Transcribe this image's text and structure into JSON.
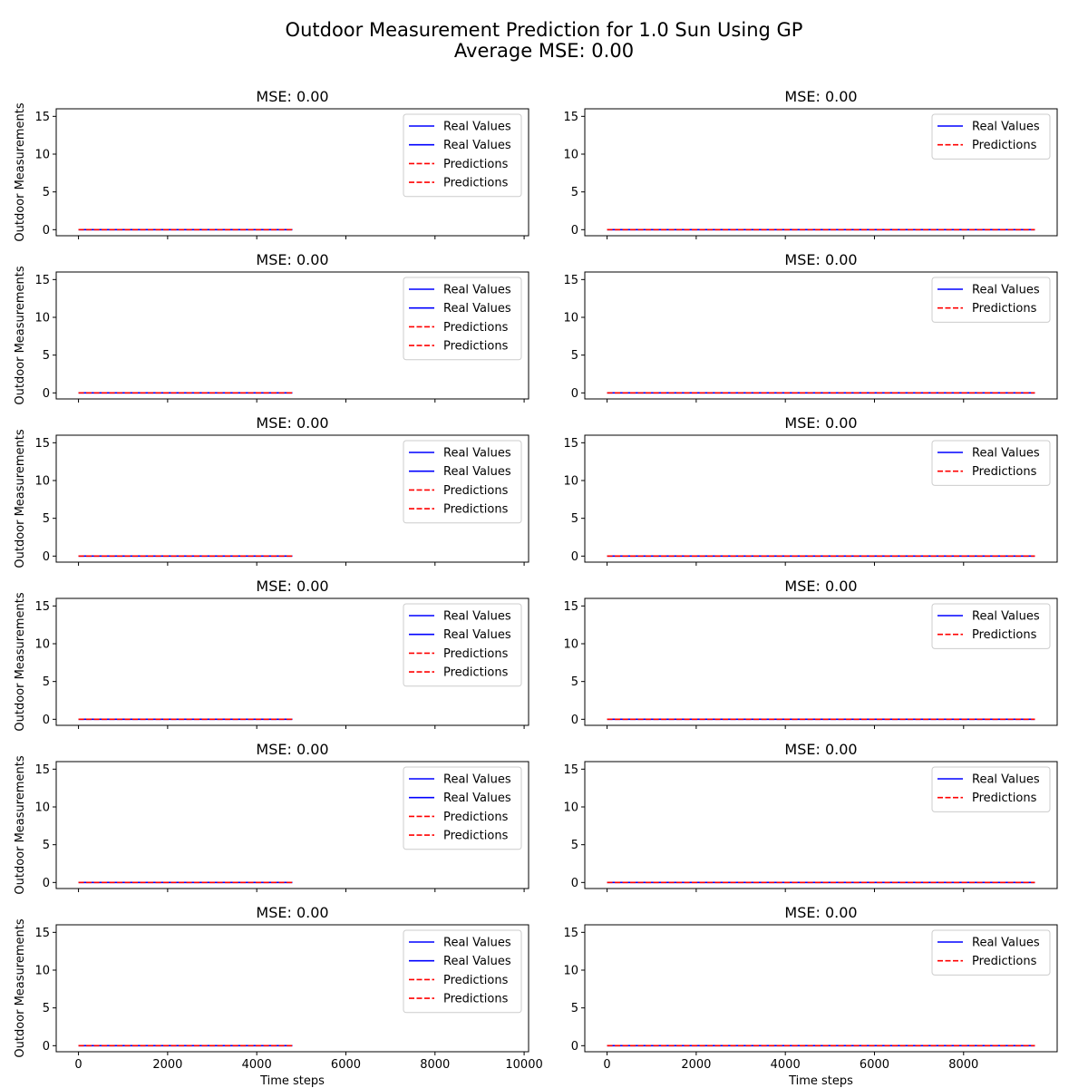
{
  "figure": {
    "title_line1": "Outdoor Measurement Prediction for 1.0 Sun Using GP",
    "title_line2": "Average MSE: 0.00"
  },
  "colors": {
    "real": "#0000ff",
    "prediction": "#ff0000",
    "axes": "#000000",
    "background": "#ffffff"
  },
  "chart_data": [
    {
      "type": "line",
      "title": "MSE: 0.00",
      "xlabel": "",
      "ylabel": "Outdoor Measurements",
      "xlim": [
        -500,
        10100
      ],
      "ylim": [
        -0.8,
        16
      ],
      "xticks": [
        0,
        2000,
        4000,
        6000,
        8000,
        10000
      ],
      "yticks": [
        0,
        5,
        10,
        15
      ],
      "x_ticklabels_visible": false,
      "legend_position": "top-right",
      "legend": [
        "Real Values",
        "Real Values",
        "Predictions",
        "Predictions"
      ],
      "series": [
        {
          "name": "Real Values",
          "style": "solid",
          "color": "#0000ff",
          "x": [
            0,
            4800
          ],
          "y": [
            0,
            0
          ]
        },
        {
          "name": "Predictions",
          "style": "dashed",
          "color": "#ff0000",
          "x": [
            0,
            4800
          ],
          "y": [
            0,
            0
          ]
        }
      ]
    },
    {
      "type": "line",
      "title": "MSE: 0.00",
      "xlabel": "",
      "ylabel": "",
      "xlim": [
        -500,
        10100
      ],
      "ylim": [
        -0.8,
        16
      ],
      "xticks": [
        0,
        2000,
        4000,
        6000,
        8000
      ],
      "yticks": [
        0,
        5,
        10,
        15
      ],
      "x_ticklabels_visible": false,
      "legend_position": "top-right",
      "legend": [
        "Real Values",
        "Predictions"
      ],
      "series": [
        {
          "name": "Real Values",
          "style": "solid",
          "color": "#0000ff",
          "x": [
            0,
            9600
          ],
          "y": [
            0,
            0
          ]
        },
        {
          "name": "Predictions",
          "style": "dashed",
          "color": "#ff0000",
          "x": [
            0,
            9600
          ],
          "y": [
            0,
            0
          ]
        }
      ]
    },
    {
      "type": "line",
      "title": "MSE: 0.00",
      "xlabel": "",
      "ylabel": "Outdoor Measurements",
      "xlim": [
        -500,
        10100
      ],
      "ylim": [
        -0.8,
        16
      ],
      "xticks": [
        0,
        2000,
        4000,
        6000,
        8000,
        10000
      ],
      "yticks": [
        0,
        5,
        10,
        15
      ],
      "x_ticklabels_visible": false,
      "legend_position": "top-right",
      "legend": [
        "Real Values",
        "Real Values",
        "Predictions",
        "Predictions"
      ],
      "series": [
        {
          "name": "Real Values",
          "style": "solid",
          "color": "#0000ff",
          "x": [
            0,
            4800
          ],
          "y": [
            0,
            0
          ]
        },
        {
          "name": "Predictions",
          "style": "dashed",
          "color": "#ff0000",
          "x": [
            0,
            4800
          ],
          "y": [
            0,
            0
          ]
        }
      ]
    },
    {
      "type": "line",
      "title": "MSE: 0.00",
      "xlabel": "",
      "ylabel": "",
      "xlim": [
        -500,
        10100
      ],
      "ylim": [
        -0.8,
        16
      ],
      "xticks": [
        0,
        2000,
        4000,
        6000,
        8000
      ],
      "yticks": [
        0,
        5,
        10,
        15
      ],
      "x_ticklabels_visible": false,
      "legend_position": "top-right",
      "legend": [
        "Real Values",
        "Predictions"
      ],
      "series": [
        {
          "name": "Real Values",
          "style": "solid",
          "color": "#0000ff",
          "x": [
            0,
            9600
          ],
          "y": [
            0,
            0
          ]
        },
        {
          "name": "Predictions",
          "style": "dashed",
          "color": "#ff0000",
          "x": [
            0,
            9600
          ],
          "y": [
            0,
            0
          ]
        }
      ]
    },
    {
      "type": "line",
      "title": "MSE: 0.00",
      "xlabel": "",
      "ylabel": "Outdoor Measurements",
      "xlim": [
        -500,
        10100
      ],
      "ylim": [
        -0.8,
        16
      ],
      "xticks": [
        0,
        2000,
        4000,
        6000,
        8000,
        10000
      ],
      "yticks": [
        0,
        5,
        10,
        15
      ],
      "x_ticklabels_visible": false,
      "legend_position": "top-right",
      "legend": [
        "Real Values",
        "Real Values",
        "Predictions",
        "Predictions"
      ],
      "series": [
        {
          "name": "Real Values",
          "style": "solid",
          "color": "#0000ff",
          "x": [
            0,
            4800
          ],
          "y": [
            0,
            0
          ]
        },
        {
          "name": "Predictions",
          "style": "dashed",
          "color": "#ff0000",
          "x": [
            0,
            4800
          ],
          "y": [
            0,
            0
          ]
        }
      ]
    },
    {
      "type": "line",
      "title": "MSE: 0.00",
      "xlabel": "",
      "ylabel": "",
      "xlim": [
        -500,
        10100
      ],
      "ylim": [
        -0.8,
        16
      ],
      "xticks": [
        0,
        2000,
        4000,
        6000,
        8000
      ],
      "yticks": [
        0,
        5,
        10,
        15
      ],
      "x_ticklabels_visible": false,
      "legend_position": "top-right",
      "legend": [
        "Real Values",
        "Predictions"
      ],
      "series": [
        {
          "name": "Real Values",
          "style": "solid",
          "color": "#0000ff",
          "x": [
            0,
            9600
          ],
          "y": [
            0,
            0
          ]
        },
        {
          "name": "Predictions",
          "style": "dashed",
          "color": "#ff0000",
          "x": [
            0,
            9600
          ],
          "y": [
            0,
            0
          ]
        }
      ]
    },
    {
      "type": "line",
      "title": "MSE: 0.00",
      "xlabel": "",
      "ylabel": "Outdoor Measurements",
      "xlim": [
        -500,
        10100
      ],
      "ylim": [
        -0.8,
        16
      ],
      "xticks": [
        0,
        2000,
        4000,
        6000,
        8000,
        10000
      ],
      "yticks": [
        0,
        5,
        10,
        15
      ],
      "x_ticklabels_visible": false,
      "legend_position": "top-right",
      "legend": [
        "Real Values",
        "Real Values",
        "Predictions",
        "Predictions"
      ],
      "series": [
        {
          "name": "Real Values",
          "style": "solid",
          "color": "#0000ff",
          "x": [
            0,
            4800
          ],
          "y": [
            0,
            0
          ]
        },
        {
          "name": "Predictions",
          "style": "dashed",
          "color": "#ff0000",
          "x": [
            0,
            4800
          ],
          "y": [
            0,
            0
          ]
        }
      ]
    },
    {
      "type": "line",
      "title": "MSE: 0.00",
      "xlabel": "",
      "ylabel": "",
      "xlim": [
        -500,
        10100
      ],
      "ylim": [
        -0.8,
        16
      ],
      "xticks": [
        0,
        2000,
        4000,
        6000,
        8000
      ],
      "yticks": [
        0,
        5,
        10,
        15
      ],
      "x_ticklabels_visible": false,
      "legend_position": "top-right",
      "legend": [
        "Real Values",
        "Predictions"
      ],
      "series": [
        {
          "name": "Real Values",
          "style": "solid",
          "color": "#0000ff",
          "x": [
            0,
            9600
          ],
          "y": [
            0,
            0
          ]
        },
        {
          "name": "Predictions",
          "style": "dashed",
          "color": "#ff0000",
          "x": [
            0,
            9600
          ],
          "y": [
            0,
            0
          ]
        }
      ]
    },
    {
      "type": "line",
      "title": "MSE: 0.00",
      "xlabel": "",
      "ylabel": "Outdoor Measurements",
      "xlim": [
        -500,
        10100
      ],
      "ylim": [
        -0.8,
        16
      ],
      "xticks": [
        0,
        2000,
        4000,
        6000,
        8000,
        10000
      ],
      "yticks": [
        0,
        5,
        10,
        15
      ],
      "x_ticklabels_visible": false,
      "legend_position": "top-right",
      "legend": [
        "Real Values",
        "Real Values",
        "Predictions",
        "Predictions"
      ],
      "series": [
        {
          "name": "Real Values",
          "style": "solid",
          "color": "#0000ff",
          "x": [
            0,
            4800
          ],
          "y": [
            0,
            0
          ]
        },
        {
          "name": "Predictions",
          "style": "dashed",
          "color": "#ff0000",
          "x": [
            0,
            4800
          ],
          "y": [
            0,
            0
          ]
        }
      ]
    },
    {
      "type": "line",
      "title": "MSE: 0.00",
      "xlabel": "",
      "ylabel": "",
      "xlim": [
        -500,
        10100
      ],
      "ylim": [
        -0.8,
        16
      ],
      "xticks": [
        0,
        2000,
        4000,
        6000,
        8000
      ],
      "yticks": [
        0,
        5,
        10,
        15
      ],
      "x_ticklabels_visible": false,
      "legend_position": "top-right",
      "legend": [
        "Real Values",
        "Predictions"
      ],
      "series": [
        {
          "name": "Real Values",
          "style": "solid",
          "color": "#0000ff",
          "x": [
            0,
            9600
          ],
          "y": [
            0,
            0
          ]
        },
        {
          "name": "Predictions",
          "style": "dashed",
          "color": "#ff0000",
          "x": [
            0,
            9600
          ],
          "y": [
            0,
            0
          ]
        }
      ]
    },
    {
      "type": "line",
      "title": "MSE: 0.00",
      "xlabel": "Time steps",
      "ylabel": "Outdoor Measurements",
      "xlim": [
        -500,
        10100
      ],
      "ylim": [
        -0.8,
        16
      ],
      "xticks": [
        0,
        2000,
        4000,
        6000,
        8000,
        10000
      ],
      "yticks": [
        0,
        5,
        10,
        15
      ],
      "x_ticklabels_visible": true,
      "legend_position": "top-right",
      "legend": [
        "Real Values",
        "Real Values",
        "Predictions",
        "Predictions"
      ],
      "series": [
        {
          "name": "Real Values",
          "style": "solid",
          "color": "#0000ff",
          "x": [
            0,
            4800
          ],
          "y": [
            0,
            0
          ]
        },
        {
          "name": "Predictions",
          "style": "dashed",
          "color": "#ff0000",
          "x": [
            0,
            4800
          ],
          "y": [
            0,
            0
          ]
        }
      ]
    },
    {
      "type": "line",
      "title": "MSE: 0.00",
      "xlabel": "Time steps",
      "ylabel": "",
      "xlim": [
        -500,
        10100
      ],
      "ylim": [
        -0.8,
        16
      ],
      "xticks": [
        0,
        2000,
        4000,
        6000,
        8000
      ],
      "yticks": [
        0,
        5,
        10,
        15
      ],
      "x_ticklabels_visible": true,
      "legend_position": "top-right",
      "legend": [
        "Real Values",
        "Predictions"
      ],
      "series": [
        {
          "name": "Real Values",
          "style": "solid",
          "color": "#0000ff",
          "x": [
            0,
            9600
          ],
          "y": [
            0,
            0
          ]
        },
        {
          "name": "Predictions",
          "style": "dashed",
          "color": "#ff0000",
          "x": [
            0,
            9600
          ],
          "y": [
            0,
            0
          ]
        }
      ]
    }
  ]
}
